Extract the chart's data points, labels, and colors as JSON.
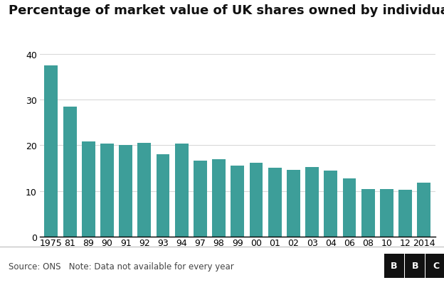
{
  "title": "Percentage of market value of UK shares owned by individuals",
  "categories": [
    "1975",
    "81",
    "89",
    "90",
    "91",
    "92",
    "93",
    "94",
    "97",
    "98",
    "99",
    "00",
    "01",
    "02",
    "03",
    "04",
    "06",
    "08",
    "10",
    "12",
    "2014"
  ],
  "values": [
    37.5,
    28.5,
    20.8,
    20.4,
    20.1,
    20.5,
    18.0,
    20.4,
    16.7,
    17.0,
    15.6,
    16.2,
    15.1,
    14.6,
    15.2,
    14.4,
    12.8,
    10.4,
    10.4,
    10.2,
    11.8
  ],
  "bar_color": "#3d9e99",
  "background_color": "#ffffff",
  "ylim": [
    0,
    42
  ],
  "yticks": [
    0,
    10,
    20,
    30,
    40
  ],
  "source_text": "Source: ONS   Note: Data not available for every year",
  "bbc_text": "BBC",
  "title_fontsize": 13,
  "tick_fontsize": 9,
  "footer_fontsize": 8.5,
  "grid_color": "#d9d9d9"
}
